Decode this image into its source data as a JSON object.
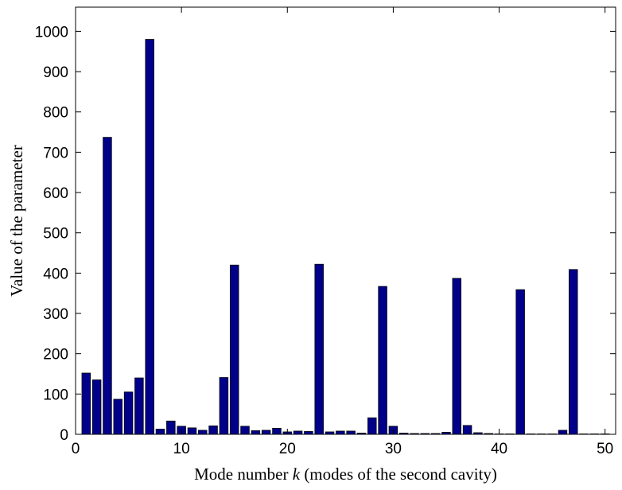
{
  "chart_data": {
    "type": "bar",
    "title": "",
    "xlabel_prefix": "Mode number ",
    "xlabel_var": "k",
    "xlabel_suffix": " (modes of the second cavity)",
    "ylabel": "Value of the parameter",
    "xlim": [
      0,
      51
    ],
    "ylim": [
      0,
      1060
    ],
    "xticks": [
      0,
      10,
      20,
      30,
      40,
      50
    ],
    "yticks": [
      0,
      100,
      200,
      300,
      400,
      500,
      600,
      700,
      800,
      900,
      1000
    ],
    "grid": false,
    "bar_color": "#00008b",
    "categories": [
      1,
      2,
      3,
      4,
      5,
      6,
      7,
      8,
      9,
      10,
      11,
      12,
      13,
      14,
      15,
      16,
      17,
      18,
      19,
      20,
      21,
      22,
      23,
      24,
      25,
      26,
      27,
      28,
      29,
      30,
      31,
      32,
      33,
      34,
      35,
      36,
      37,
      38,
      39,
      40,
      41,
      42,
      43,
      44,
      45,
      46,
      47,
      48,
      49,
      50
    ],
    "values": [
      152,
      135,
      737,
      87,
      105,
      140,
      980,
      13,
      33,
      20,
      16,
      10,
      21,
      141,
      420,
      20,
      9,
      10,
      15,
      6,
      8,
      7,
      422,
      6,
      8,
      8,
      3,
      41,
      367,
      20,
      3,
      2,
      2,
      2,
      5,
      387,
      22,
      4,
      2,
      1,
      1,
      359,
      1,
      1,
      1,
      10,
      409,
      1,
      1,
      1
    ]
  }
}
